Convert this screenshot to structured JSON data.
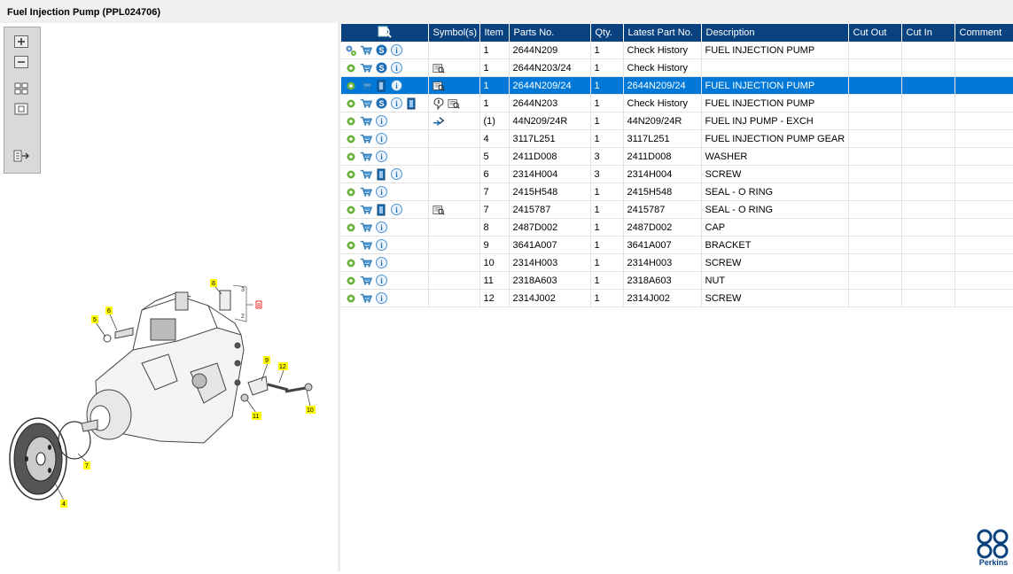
{
  "window": {
    "title": "Fuel Injection Pump (PPL024706)"
  },
  "toolbar": {
    "buttons": [
      "zoom-in",
      "zoom-out",
      "fit-all",
      "fit-window",
      "toggle-panel"
    ]
  },
  "table": {
    "columns": [
      "Symbol(s)",
      "Item",
      "Parts No.",
      "Qty.",
      "Latest Part No.",
      "Description",
      "Cut Out",
      "Cut In",
      "Comment"
    ],
    "rows": [
      {
        "icons": [
          "gears",
          "cart",
          "s",
          "info"
        ],
        "sym": [],
        "item": "1",
        "part": "2644N209",
        "qty": "1",
        "latest": "Check History",
        "desc": "FUEL INJECTION PUMP"
      },
      {
        "icons": [
          "gear",
          "cart",
          "s",
          "info"
        ],
        "sym": [
          "book"
        ],
        "item": "1",
        "part": "2644N203/24",
        "qty": "1",
        "latest": "Check History",
        "desc": ""
      },
      {
        "icons": [
          "gear",
          "cart",
          "doc",
          "info"
        ],
        "sym": [
          "book"
        ],
        "item": "1",
        "part": "2644N209/24",
        "qty": "1",
        "latest": "2644N209/24",
        "desc": "FUEL INJECTION PUMP"
      },
      {
        "icons": [
          "gear",
          "cart",
          "s",
          "info",
          "doc"
        ],
        "sym": [
          "note",
          "book"
        ],
        "item": "1",
        "part": "2644N203",
        "qty": "1",
        "latest": "Check History",
        "desc": "FUEL INJECTION PUMP"
      },
      {
        "icons": [
          "gear",
          "cart",
          "info"
        ],
        "sym": [
          "exchange"
        ],
        "item": "(1)",
        "part": "44N209/24R",
        "qty": "1",
        "latest": "44N209/24R",
        "desc": "FUEL INJ PUMP - EXCH"
      },
      {
        "icons": [
          "gear",
          "cart",
          "info"
        ],
        "sym": [],
        "item": "4",
        "part": "3117L251",
        "qty": "1",
        "latest": "3117L251",
        "desc": "FUEL INJECTION PUMP GEAR"
      },
      {
        "icons": [
          "gear",
          "cart",
          "info"
        ],
        "sym": [],
        "item": "5",
        "part": "2411D008",
        "qty": "3",
        "latest": "2411D008",
        "desc": "WASHER"
      },
      {
        "icons": [
          "gear",
          "cart",
          "doc",
          "info"
        ],
        "sym": [],
        "item": "6",
        "part": "2314H004",
        "qty": "3",
        "latest": "2314H004",
        "desc": "SCREW"
      },
      {
        "icons": [
          "gear",
          "cart",
          "info"
        ],
        "sym": [],
        "item": "7",
        "part": "2415H548",
        "qty": "1",
        "latest": "2415H548",
        "desc": "SEAL - O RING"
      },
      {
        "icons": [
          "gear",
          "cart",
          "doc",
          "info"
        ],
        "sym": [
          "book"
        ],
        "item": "7",
        "part": "2415787",
        "qty": "1",
        "latest": "2415787",
        "desc": "SEAL - O RING"
      },
      {
        "icons": [
          "gear",
          "cart",
          "info"
        ],
        "sym": [],
        "item": "8",
        "part": "2487D002",
        "qty": "1",
        "latest": "2487D002",
        "desc": "CAP"
      },
      {
        "icons": [
          "gear",
          "cart",
          "info"
        ],
        "sym": [],
        "item": "9",
        "part": "3641A007",
        "qty": "1",
        "latest": "3641A007",
        "desc": "BRACKET"
      },
      {
        "icons": [
          "gear",
          "cart",
          "info"
        ],
        "sym": [],
        "item": "10",
        "part": "2314H003",
        "qty": "1",
        "latest": "2314H003",
        "desc": "SCREW"
      },
      {
        "icons": [
          "gear",
          "cart",
          "info"
        ],
        "sym": [],
        "item": "11",
        "part": "2318A603",
        "qty": "1",
        "latest": "2318A603",
        "desc": "NUT"
      },
      {
        "icons": [
          "gear",
          "cart",
          "info"
        ],
        "sym": [],
        "item": "12",
        "part": "2314J002",
        "qty": "1",
        "latest": "2314J002",
        "desc": "SCREW"
      }
    ],
    "selected_row": 2
  },
  "diagram": {
    "callouts": [
      "8",
      "6",
      "5",
      "3",
      "2",
      "9",
      "12",
      "11",
      "10",
      "7",
      "4"
    ],
    "ref_label": "8"
  },
  "brand": {
    "name": "Perkins",
    "color": "#0a4280"
  },
  "colors": {
    "header": "#0a4280",
    "selected": "#0078d7",
    "callout": "#ffff00"
  }
}
